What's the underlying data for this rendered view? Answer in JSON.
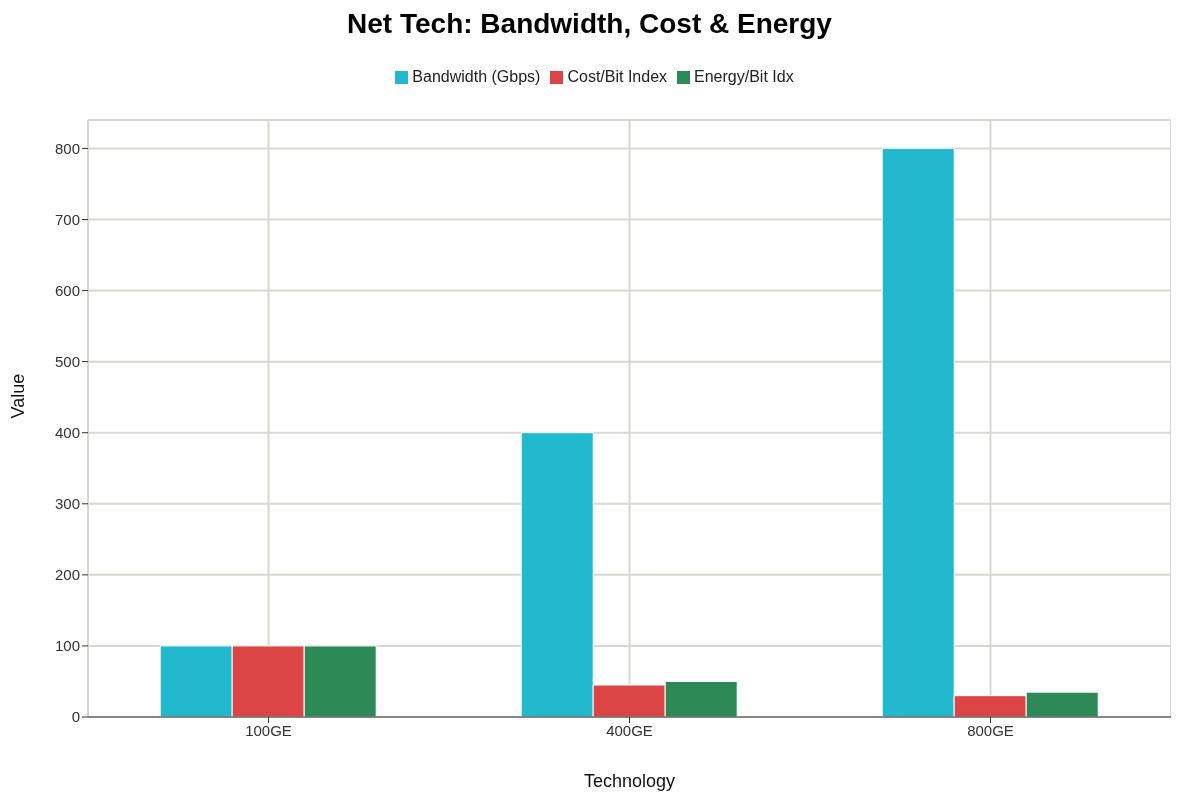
{
  "chart_data": {
    "type": "bar",
    "title": "Net Tech: Bandwidth, Cost & Energy",
    "xlabel": "Technology",
    "ylabel": "Value",
    "categories": [
      "100GE",
      "400GE",
      "800GE"
    ],
    "series": [
      {
        "name": "Bandwidth (Gbps)",
        "color": "#22b8ce",
        "values": [
          100,
          400,
          800
        ]
      },
      {
        "name": "Cost/Bit Index",
        "color": "#db4545",
        "values": [
          100,
          45,
          30
        ]
      },
      {
        "name": "Energy/Bit Idx",
        "color": "#2d8a57",
        "values": [
          100,
          50,
          35
        ]
      }
    ],
    "ylim": [
      0,
      840
    ],
    "yticks": [
      0,
      100,
      200,
      300,
      400,
      500,
      600,
      700,
      800
    ],
    "grid": true,
    "legend": "top"
  }
}
